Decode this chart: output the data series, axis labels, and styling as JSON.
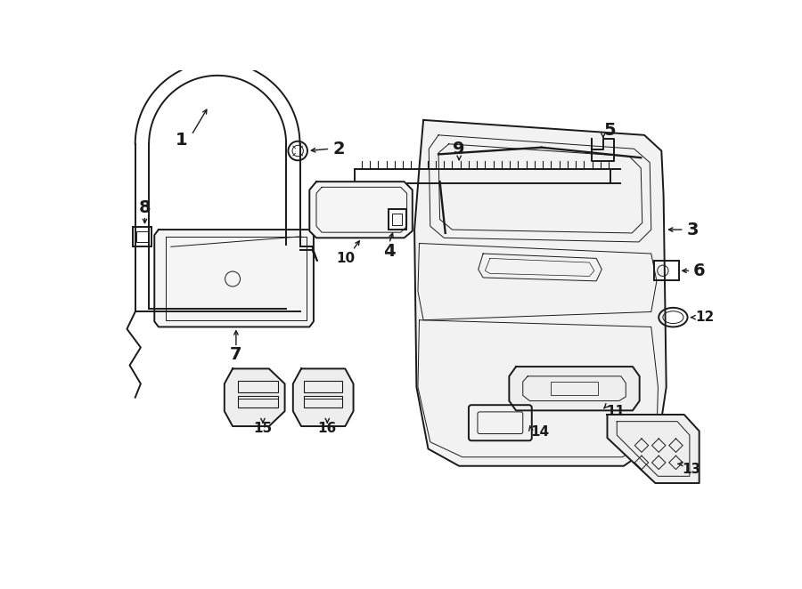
{
  "bg_color": "#ffffff",
  "line_color": "#1a1a1a",
  "lw_main": 1.4,
  "lw_thin": 0.7,
  "figsize": [
    9.0,
    6.62
  ],
  "dpi": 100,
  "xlim": [
    0,
    900
  ],
  "ylim": [
    0,
    662
  ]
}
